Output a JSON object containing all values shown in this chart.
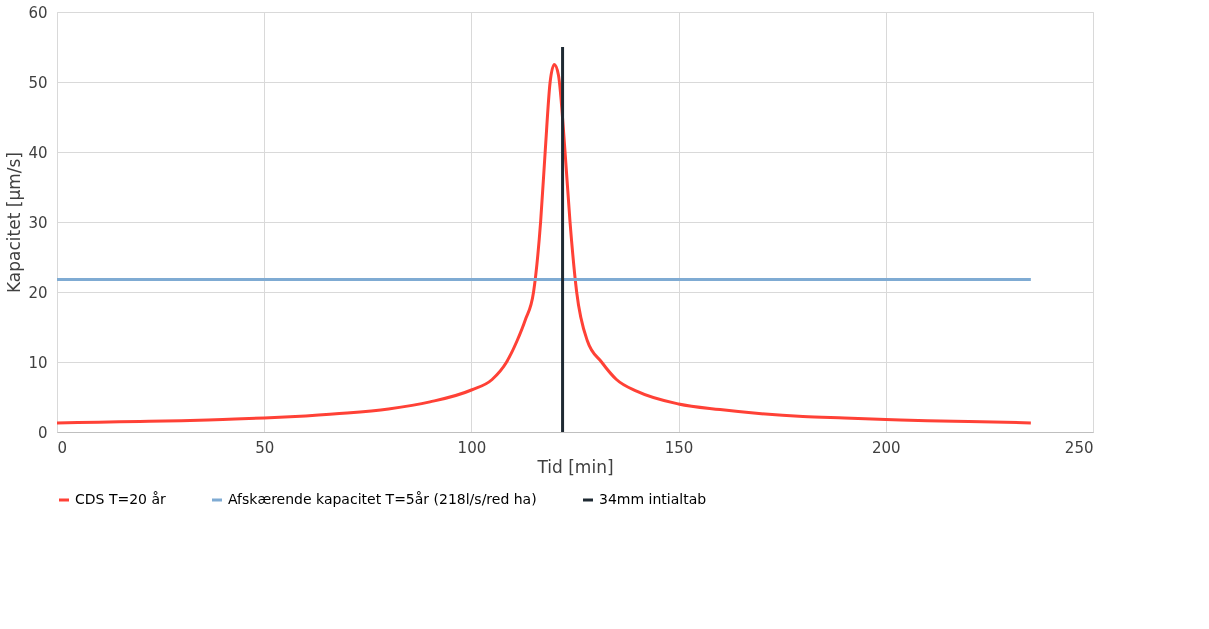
{
  "chart_data": {
    "type": "line",
    "xlabel": "Tid [min]",
    "ylabel": "Kapacitet [µm/s]",
    "xlim": [
      0,
      250
    ],
    "xticks": [
      0,
      50,
      100,
      150,
      200,
      250
    ],
    "ylim": [
      0,
      60
    ],
    "yticks": [
      0,
      10,
      20,
      30,
      40,
      50,
      60
    ],
    "grid": true,
    "legend": "bottom",
    "marker": "none",
    "line_style": "solid",
    "series": [
      {
        "name": "CDS T=20 år",
        "color": "#ff4136",
        "x": [
          0,
          10,
          20,
          30,
          40,
          50,
          60,
          70,
          80,
          90,
          100,
          105,
          108.5,
          111,
          113,
          115,
          116.7,
          117.8,
          119,
          120,
          121,
          122.6,
          123.8,
          125.4,
          128,
          131.4,
          135,
          140,
          150,
          160,
          170,
          180,
          190,
          200,
          210,
          220,
          235
        ],
        "values": [
          1.3,
          1.4,
          1.5,
          1.6,
          1.8,
          2.0,
          2.3,
          2.7,
          3.3,
          4.3,
          6.0,
          7.5,
          10,
          13,
          16,
          20,
          30,
          40,
          50,
          52.5,
          51,
          40,
          30,
          20,
          13,
          10,
          7.5,
          5.8,
          4.0,
          3.2,
          2.6,
          2.2,
          2.0,
          1.8,
          1.6,
          1.5,
          1.3
        ]
      },
      {
        "name": "Afskærende kapacitet T=5år (218l/s/red ha)",
        "color": "#7fabd3",
        "x": [
          0,
          235
        ],
        "values": [
          21.8,
          21.8
        ]
      },
      {
        "name": "34mm intialtab",
        "color": "#1f2a33",
        "x": [
          122,
          122
        ],
        "values": [
          0,
          55
        ]
      }
    ]
  }
}
